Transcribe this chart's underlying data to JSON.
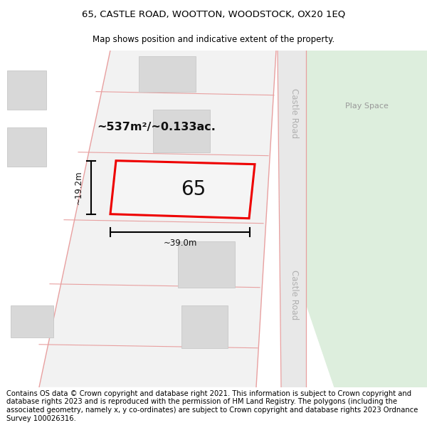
{
  "title_line1": "65, CASTLE ROAD, WOOTTON, WOODSTOCK, OX20 1EQ",
  "title_line2": "Map shows position and indicative extent of the property.",
  "footer_text": "Contains OS data © Crown copyright and database right 2021. This information is subject to Crown copyright and database rights 2023 and is reproduced with the permission of HM Land Registry. The polygons (including the associated geometry, namely x, y co-ordinates) are subject to Crown copyright and database rights 2023 Ordnance Survey 100026316.",
  "background_color": "#ffffff",
  "road_line_color": "#e8a0a0",
  "building_fill_color": "#d8d8d8",
  "building_edge_color": "#c8c8c8",
  "green_area_color": "#ddeedd",
  "road_fill_color": "#eeeeee",
  "castle_road_fill": "#e8e8e8",
  "highlighted_plot_color": "#ee0000",
  "area_text": "~537m²/~0.133ac.",
  "dim_width": "~39.0m",
  "dim_height": "~19.2m",
  "castle_road_label": "Castle Road",
  "play_space_label": "Play Space",
  "title_fontsize": 9.5,
  "subtitle_fontsize": 8.5,
  "footer_fontsize": 7.2,
  "label_65_fontsize": 20
}
